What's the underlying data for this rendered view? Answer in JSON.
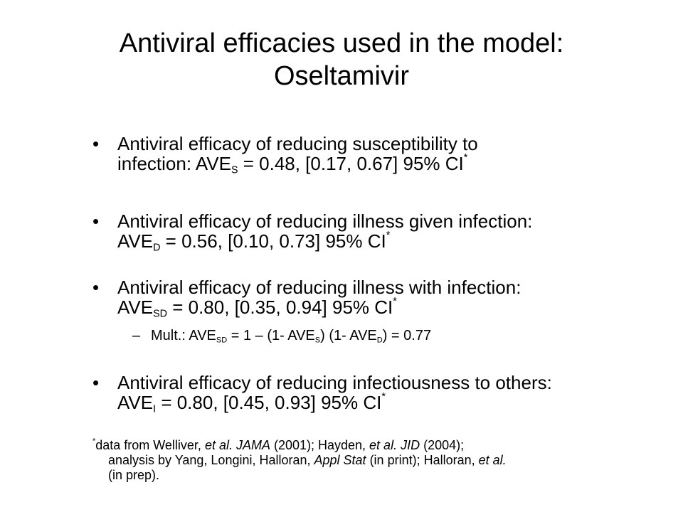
{
  "title": {
    "line1": "Antiviral efficacies used in the model:",
    "line2": "Oseltamivir"
  },
  "bullet_symbol": "•",
  "sub_symbol": "–",
  "bullets": [
    {
      "line1": "Antiviral efficacy of reducing susceptibility to",
      "line2_pre": "infection:  AVE",
      "sub": "S",
      "line2_post": " = 0.48, [0.17, 0.67] 95% CI",
      "mark": "*"
    },
    {
      "line1": "Antiviral efficacy of reducing illness given infection:",
      "line2_pre": "AVE",
      "sub": "D",
      "line2_post": " = 0.56, [0.10, 0.73] 95% CI",
      "mark": "*"
    },
    {
      "line1": "Antiviral efficacy of reducing illness with infection:",
      "line2_pre": "AVE",
      "sub": "SD",
      "line2_post": " = 0.80, [0.35, 0.94] 95% CI",
      "mark": "*"
    },
    {
      "line1": "Antiviral efficacy of reducing infectiousness to others:",
      "line2_pre": "AVE",
      "sub": "I",
      "line2_post": " = 0.80, [0.45, 0.93] 95% CI",
      "mark": "*"
    }
  ],
  "subbullet": {
    "p1": "Mult.: AVE",
    "s1": "SD",
    "p2": " = 1 – (1- AVE",
    "s2": "S",
    "p3": ") (1- AVE",
    "s3": "D",
    "p4": ") = 0.77"
  },
  "footnote": {
    "mark": "*",
    "t1": "data from Welliver, ",
    "i1": "et al. JAMA",
    "t2": " (2001); Hayden, ",
    "i2": "et al. JID",
    "t3": " (2004);",
    "t4": "analysis by Yang, Longini, Halloran, ",
    "i3": "Appl Stat",
    "t5": " (in print); Halloran, ",
    "i4": "et al.",
    "t6": "(in prep)."
  }
}
